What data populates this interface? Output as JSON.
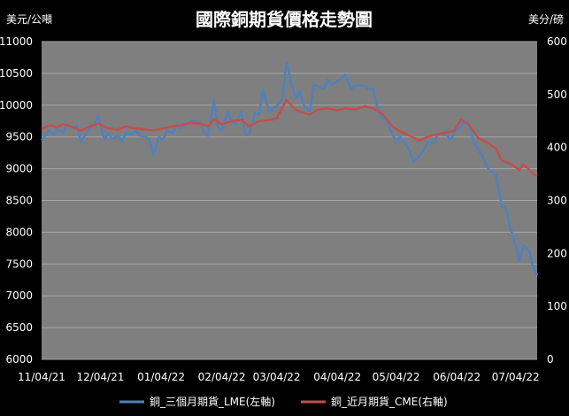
{
  "chart_data": {
    "type": "line",
    "title": "國際銅期貨價格走勢圖",
    "left_unit": "美元/公噸",
    "right_unit": "美分/磅",
    "x_tick_labels": [
      "11/04/21",
      "12/04/21",
      "01/04/22",
      "02/04/22",
      "03/04/22",
      "04/04/22",
      "05/04/22",
      "06/04/22",
      "07/04/22"
    ],
    "x_range": [
      "2021-11-04",
      "2022-07-15"
    ],
    "y_left": {
      "min": 6000,
      "max": 11000,
      "step": 500
    },
    "y_right": {
      "min": 0,
      "max": 600,
      "step": 100
    },
    "grid": true,
    "legend_position": "bottom",
    "series": [
      {
        "name": "銅_三個月期貨_LME(左軸)",
        "axis": "left",
        "color": "#4f81bd",
        "points": [
          [
            "2021-11-04",
            9450
          ],
          [
            "2021-11-06",
            9520
          ],
          [
            "2021-11-08",
            9600
          ],
          [
            "2021-11-10",
            9540
          ],
          [
            "2021-11-12",
            9620
          ],
          [
            "2021-11-15",
            9560
          ],
          [
            "2021-11-17",
            9700
          ],
          [
            "2021-11-19",
            9650
          ],
          [
            "2021-11-22",
            9680
          ],
          [
            "2021-11-24",
            9420
          ],
          [
            "2021-11-26",
            9520
          ],
          [
            "2021-11-29",
            9640
          ],
          [
            "2021-12-01",
            9700
          ],
          [
            "2021-12-03",
            9830
          ],
          [
            "2021-12-06",
            9460
          ],
          [
            "2021-12-08",
            9560
          ],
          [
            "2021-12-10",
            9470
          ],
          [
            "2021-12-13",
            9520
          ],
          [
            "2021-12-15",
            9430
          ],
          [
            "2021-12-17",
            9560
          ],
          [
            "2021-12-20",
            9540
          ],
          [
            "2021-12-22",
            9600
          ],
          [
            "2021-12-24",
            9520
          ],
          [
            "2021-12-27",
            9500
          ],
          [
            "2021-12-29",
            9460
          ],
          [
            "2021-12-31",
            9220
          ],
          [
            "2022-01-03",
            9500
          ],
          [
            "2022-01-05",
            9450
          ],
          [
            "2022-01-07",
            9600
          ],
          [
            "2022-01-10",
            9560
          ],
          [
            "2022-01-12",
            9700
          ],
          [
            "2022-01-14",
            9640
          ],
          [
            "2022-01-17",
            9700
          ],
          [
            "2022-01-19",
            9740
          ],
          [
            "2022-01-21",
            9750
          ],
          [
            "2022-01-24",
            9720
          ],
          [
            "2022-01-26",
            9560
          ],
          [
            "2022-01-28",
            9520
          ],
          [
            "2022-01-31",
            10080
          ],
          [
            "2022-02-02",
            9650
          ],
          [
            "2022-02-04",
            9600
          ],
          [
            "2022-02-07",
            9900
          ],
          [
            "2022-02-09",
            9750
          ],
          [
            "2022-02-11",
            9700
          ],
          [
            "2022-02-14",
            9900
          ],
          [
            "2022-02-16",
            9530
          ],
          [
            "2022-02-18",
            9540
          ],
          [
            "2022-02-21",
            9880
          ],
          [
            "2022-02-23",
            9850
          ],
          [
            "2022-02-25",
            10250
          ],
          [
            "2022-02-28",
            9900
          ],
          [
            "2022-03-02",
            9950
          ],
          [
            "2022-03-04",
            9980
          ],
          [
            "2022-03-07",
            10100
          ],
          [
            "2022-03-09",
            10680
          ],
          [
            "2022-03-11",
            10400
          ],
          [
            "2022-03-14",
            10100
          ],
          [
            "2022-03-16",
            10220
          ],
          [
            "2022-03-18",
            10000
          ],
          [
            "2022-03-21",
            9900
          ],
          [
            "2022-03-23",
            10320
          ],
          [
            "2022-03-25",
            10300
          ],
          [
            "2022-03-28",
            10250
          ],
          [
            "2022-03-30",
            10400
          ],
          [
            "2022-04-01",
            10320
          ],
          [
            "2022-04-04",
            10380
          ],
          [
            "2022-04-06",
            10420
          ],
          [
            "2022-04-08",
            10480
          ],
          [
            "2022-04-11",
            10250
          ],
          [
            "2022-04-13",
            10300
          ],
          [
            "2022-04-15",
            10320
          ],
          [
            "2022-04-18",
            10300
          ],
          [
            "2022-04-20",
            10250
          ],
          [
            "2022-04-22",
            10260
          ],
          [
            "2022-04-25",
            9900
          ],
          [
            "2022-04-27",
            9800
          ],
          [
            "2022-04-29",
            9750
          ],
          [
            "2022-05-02",
            9550
          ],
          [
            "2022-05-04",
            9420
          ],
          [
            "2022-05-06",
            9500
          ],
          [
            "2022-05-09",
            9380
          ],
          [
            "2022-05-11",
            9280
          ],
          [
            "2022-05-13",
            9110
          ],
          [
            "2022-05-16",
            9200
          ],
          [
            "2022-05-18",
            9280
          ],
          [
            "2022-05-20",
            9420
          ],
          [
            "2022-05-23",
            9400
          ],
          [
            "2022-05-25",
            9520
          ],
          [
            "2022-05-27",
            9550
          ],
          [
            "2022-05-30",
            9520
          ],
          [
            "2022-06-01",
            9450
          ],
          [
            "2022-06-03",
            9580
          ],
          [
            "2022-06-06",
            9650
          ],
          [
            "2022-06-08",
            9750
          ],
          [
            "2022-06-10",
            9720
          ],
          [
            "2022-06-13",
            9400
          ],
          [
            "2022-06-15",
            9300
          ],
          [
            "2022-06-17",
            9200
          ],
          [
            "2022-06-20",
            9000
          ],
          [
            "2022-06-22",
            8950
          ],
          [
            "2022-06-24",
            8900
          ],
          [
            "2022-06-27",
            8400
          ],
          [
            "2022-06-29",
            8380
          ],
          [
            "2022-07-01",
            8100
          ],
          [
            "2022-07-04",
            7800
          ],
          [
            "2022-07-06",
            7550
          ],
          [
            "2022-07-08",
            7800
          ],
          [
            "2022-07-11",
            7700
          ],
          [
            "2022-07-13",
            7450
          ],
          [
            "2022-07-15",
            7320
          ]
        ]
      },
      {
        "name": "銅_近月期貨_CME(右軸)",
        "axis": "right",
        "color": "#c0504d",
        "points": [
          [
            "2021-11-04",
            435
          ],
          [
            "2021-11-08",
            442
          ],
          [
            "2021-11-12",
            438
          ],
          [
            "2021-11-15",
            444
          ],
          [
            "2021-11-19",
            440
          ],
          [
            "2021-11-24",
            432
          ],
          [
            "2021-11-29",
            440
          ],
          [
            "2021-12-03",
            445
          ],
          [
            "2021-12-08",
            436
          ],
          [
            "2021-12-13",
            434
          ],
          [
            "2021-12-17",
            440
          ],
          [
            "2021-12-22",
            436
          ],
          [
            "2021-12-27",
            434
          ],
          [
            "2021-12-31",
            432
          ],
          [
            "2022-01-05",
            436
          ],
          [
            "2022-01-10",
            440
          ],
          [
            "2022-01-14",
            442
          ],
          [
            "2022-01-19",
            446
          ],
          [
            "2022-01-24",
            445
          ],
          [
            "2022-01-28",
            440
          ],
          [
            "2022-01-31",
            454
          ],
          [
            "2022-02-04",
            444
          ],
          [
            "2022-02-09",
            450
          ],
          [
            "2022-02-14",
            452
          ],
          [
            "2022-02-18",
            440
          ],
          [
            "2022-02-23",
            450
          ],
          [
            "2022-02-28",
            452
          ],
          [
            "2022-03-04",
            455
          ],
          [
            "2022-03-09",
            490
          ],
          [
            "2022-03-14",
            470
          ],
          [
            "2022-03-18",
            465
          ],
          [
            "2022-03-21",
            462
          ],
          [
            "2022-03-25",
            472
          ],
          [
            "2022-03-30",
            474
          ],
          [
            "2022-04-04",
            470
          ],
          [
            "2022-04-08",
            474
          ],
          [
            "2022-04-13",
            472
          ],
          [
            "2022-04-18",
            478
          ],
          [
            "2022-04-22",
            474
          ],
          [
            "2022-04-27",
            464
          ],
          [
            "2022-05-02",
            440
          ],
          [
            "2022-05-06",
            430
          ],
          [
            "2022-05-11",
            422
          ],
          [
            "2022-05-16",
            413
          ],
          [
            "2022-05-20",
            420
          ],
          [
            "2022-05-25",
            425
          ],
          [
            "2022-05-30",
            428
          ],
          [
            "2022-06-03",
            433
          ],
          [
            "2022-06-06",
            452
          ],
          [
            "2022-06-10",
            444
          ],
          [
            "2022-06-15",
            418
          ],
          [
            "2022-06-20",
            408
          ],
          [
            "2022-06-24",
            398
          ],
          [
            "2022-06-27",
            375
          ],
          [
            "2022-07-01",
            370
          ],
          [
            "2022-07-06",
            358
          ],
          [
            "2022-07-08",
            368
          ],
          [
            "2022-07-11",
            358
          ],
          [
            "2022-07-13",
            350
          ],
          [
            "2022-07-15",
            346
          ]
        ]
      }
    ]
  }
}
